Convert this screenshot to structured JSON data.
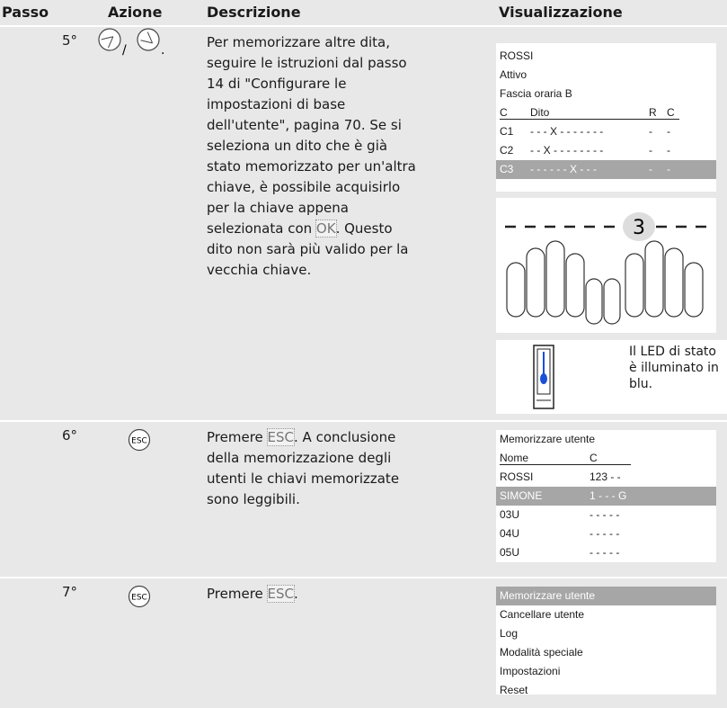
{
  "header": [
    "Passo",
    "Azione",
    "Descrizione",
    "Visualizzazione"
  ],
  "rows": [
    {
      "step": "5°",
      "action_text": [
        "/",
        "."
      ],
      "description": [
        "Per memorizzare altre dita,",
        "seguire le istruzioni dal passo",
        "14 di \"Configurare le",
        "impostazioni di base",
        "dell'utente\", pagina 70. Se si",
        "seleziona un dito che è già",
        "stato memorizzato per un'altra",
        "chiave, è possibile acquisirlo",
        "per la chiave appena",
        "selezionata con ",
        "OK",
        ". Questo",
        "dito non sarà più valido per la",
        "vecchia chiave."
      ],
      "display": {
        "underline": 3,
        "highlight": 6,
        "lines": [
          [
            "ROSSI"
          ],
          [
            "Attivo"
          ],
          [
            "Fascia oraria B"
          ],
          [
            "C",
            "Dito",
            "R",
            "C"
          ],
          [
            "C1",
            "- - - X - - - - - - -",
            "-",
            "-"
          ],
          [
            "C2",
            "- - X - - - - - - - -",
            "-",
            "-"
          ],
          [
            "C3",
            "- - - - - - X - - -",
            "-",
            "-"
          ]
        ]
      },
      "finger_digit": "3",
      "led_text": [
        "Il LED di stato",
        "è illuminato in",
        "blu."
      ]
    },
    {
      "step": "6°",
      "icon_label": "ESC",
      "description": [
        "Premere ",
        "ESC",
        ". A conclusione",
        "della memorizzazione degli",
        "utenti le chiavi memorizzate",
        "sono leggibili."
      ],
      "display": {
        "underline": 1,
        "highlight": 3,
        "lines": [
          [
            "Memorizzare utente"
          ],
          [
            "Nome",
            "C"
          ],
          [
            "ROSSI",
            "123 - -"
          ],
          [
            "SIMONE",
            "1 - - - G"
          ],
          [
            "03U",
            "- - - - -"
          ],
          [
            "04U",
            "- - - - -"
          ],
          [
            "05U",
            "- - - - -"
          ]
        ]
      }
    },
    {
      "step": "7°",
      "icon_label": "ESC",
      "description": [
        "Premere ",
        "ESC",
        "."
      ],
      "display": {
        "highlight": 0,
        "lines": [
          [
            "Memorizzare utente"
          ],
          [
            "Cancellare utente"
          ],
          [
            "Log"
          ],
          [
            "Modalità speciale"
          ],
          [
            "Impostazioni"
          ],
          [
            "Reset"
          ]
        ]
      }
    }
  ]
}
